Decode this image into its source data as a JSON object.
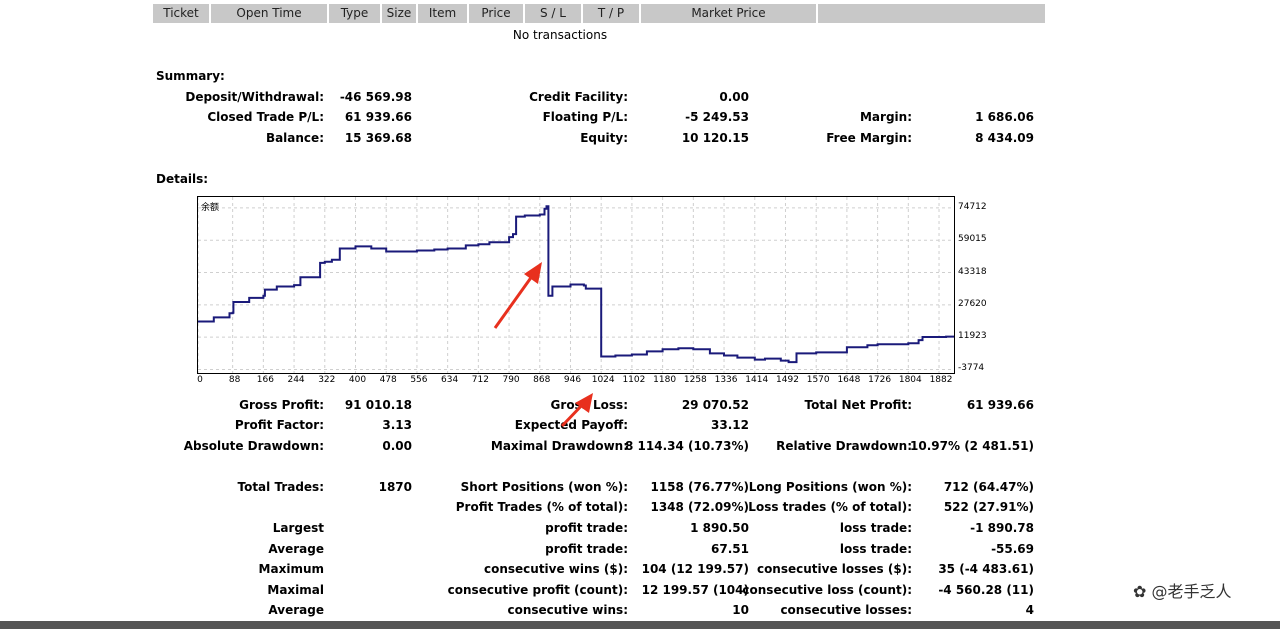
{
  "transactions_header": [
    "Ticket",
    "Open Time",
    "Type",
    "Size",
    "Item",
    "Price",
    "S / L",
    "T / P",
    "Market Price",
    ""
  ],
  "no_transactions": "No transactions",
  "summary": {
    "title": "Summary:",
    "deposit_label": "Deposit/Withdrawal:",
    "deposit_value": "-46 569.98",
    "credit_label": "Credit Facility:",
    "credit_value": "0.00",
    "closed_label": "Closed Trade P/L:",
    "closed_value": "61 939.66",
    "floating_label": "Floating P/L:",
    "floating_value": "-5 249.53",
    "margin_label": "Margin:",
    "margin_value": "1 686.06",
    "balance_label": "Balance:",
    "balance_value": "15 369.68",
    "equity_label": "Equity:",
    "equity_value": "10 120.15",
    "free_margin_label": "Free Margin:",
    "free_margin_value": "8 434.09"
  },
  "details_title": "Details:",
  "chart_data": {
    "type": "line",
    "title": "余额",
    "yticks": [
      74712,
      59015,
      43318,
      27620,
      11923,
      -3774
    ],
    "xticks": [
      0,
      88,
      166,
      244,
      322,
      400,
      478,
      556,
      634,
      712,
      790,
      868,
      946,
      1024,
      1102,
      1180,
      1258,
      1336,
      1414,
      1492,
      1570,
      1648,
      1726,
      1804,
      1882
    ],
    "xlim": [
      0,
      1920
    ],
    "ylim": [
      -5500,
      80000
    ],
    "grid": true,
    "line_color": "#1a1a7a",
    "series": [
      {
        "x": [
          0,
          40,
          80,
          88,
          90,
          130,
          166,
          170,
          200,
          244,
          260,
          310,
          322,
          340,
          360,
          400,
          440,
          478,
          520,
          556,
          600,
          634,
          680,
          712,
          740,
          790,
          800,
          808,
          830,
          868,
          880,
          885,
          890,
          900,
          946,
          980,
          985,
          1024,
          1060,
          1102,
          1140,
          1180,
          1220,
          1258,
          1300,
          1336,
          1370,
          1414,
          1440,
          1480,
          1500,
          1520,
          1570,
          1600,
          1648,
          1700,
          1726,
          1760,
          1804,
          1830,
          1840,
          1900,
          1920
        ],
        "y": [
          19500,
          21500,
          23500,
          23800,
          29000,
          31000,
          32000,
          35000,
          36500,
          37200,
          41000,
          48000,
          48500,
          49500,
          55000,
          56000,
          55000,
          53500,
          53500,
          54000,
          54500,
          55000,
          56500,
          57000,
          58000,
          60500,
          62000,
          70500,
          71000,
          71500,
          74300,
          75500,
          32000,
          36500,
          37500,
          37000,
          35500,
          2500,
          3000,
          3500,
          5000,
          6000,
          6500,
          6000,
          4000,
          3000,
          2000,
          1000,
          1500,
          500,
          -200,
          4000,
          4500,
          4500,
          7000,
          8000,
          8500,
          8500,
          9000,
          10500,
          12000,
          12200,
          12000
        ]
      }
    ],
    "annotations": "two red arrows"
  },
  "stats": {
    "gross_profit_label": "Gross Profit:",
    "gross_profit_value": "91 010.18",
    "gross_loss_label": "Gross Loss:",
    "gross_loss_value": "29 070.52",
    "net_profit_label": "Total Net Profit:",
    "net_profit_value": "61 939.66",
    "profit_factor_label": "Profit Factor:",
    "profit_factor_value": "3.13",
    "expected_payoff_label": "Expected Payoff:",
    "expected_payoff_value": "33.12",
    "abs_dd_label": "Absolute Drawdown:",
    "abs_dd_value": "0.00",
    "max_dd_label": "Maximal Drawdown:",
    "max_dd_value": "8 114.34 (10.73%)",
    "rel_dd_label": "Relative Drawdown:",
    "rel_dd_value": "10.97% (2 481.51)",
    "total_trades_label": "Total Trades:",
    "total_trades_value": "1870",
    "short_label": "Short Positions (won %):",
    "short_value": "1158 (76.77%)",
    "long_label": "Long Positions (won %):",
    "long_value": "712 (64.47%)",
    "profit_trades_label": "Profit Trades (% of total):",
    "profit_trades_value": "1348 (72.09%)",
    "loss_trades_label": "Loss trades (% of total):",
    "loss_trades_value": "522 (27.91%)",
    "largest_label": "Largest",
    "largest_profit_label": "profit trade:",
    "largest_profit_value": "1 890.50",
    "largest_loss_label": "loss trade:",
    "largest_loss_value": "-1 890.78",
    "average_label": "Average",
    "average_profit_label": "profit trade:",
    "average_profit_value": "67.51",
    "average_loss_label": "loss trade:",
    "average_loss_value": "-55.69",
    "maximum_label": "Maximum",
    "max_wins_label": "consecutive wins ($):",
    "max_wins_value": "104 (12 199.57)",
    "max_losses_label": "consecutive losses ($):",
    "max_losses_value": "35 (-4 483.61)",
    "maximal_label": "Maximal",
    "maximal_profit_label": "consecutive profit (count):",
    "maximal_profit_value": "12 199.57 (104)",
    "maximal_loss_label": "consecutive loss (count):",
    "maximal_loss_value": "-4 560.28 (11)",
    "average2_label": "Average",
    "avg_wins_label": "consecutive wins:",
    "avg_wins_value": "10",
    "avg_losses_label": "consecutive losses:",
    "avg_losses_value": "4"
  },
  "watermark": "@老手乏人"
}
